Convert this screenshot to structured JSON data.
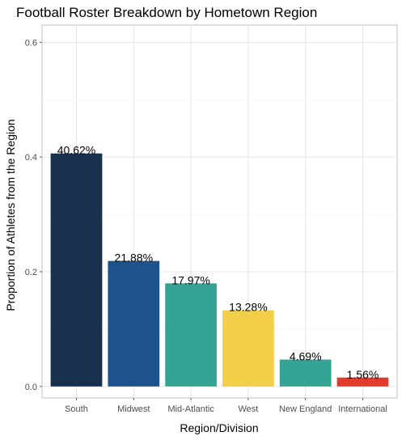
{
  "chart_data": {
    "type": "bar",
    "title": "Football Roster Breakdown by Hometown Region",
    "xlabel": "Region/Division",
    "ylabel": "Proportion of Athletes from the Region",
    "categories": [
      "South",
      "Midwest",
      "Mid-Atlantic",
      "West",
      "New England",
      "International"
    ],
    "values": [
      0.4062,
      0.2188,
      0.1797,
      0.1328,
      0.0469,
      0.0156
    ],
    "data_labels": [
      "40.62%",
      "21.88%",
      "17.97%",
      "13.28%",
      "4.69%",
      "1.56%"
    ],
    "colors": [
      "#16304d",
      "#1d528d",
      "#34a393",
      "#f3cf49",
      "#34a393",
      "#e03b2b"
    ],
    "yticks": [
      0,
      0.2,
      0.4,
      0.6
    ],
    "ytick_labels": [
      "0.0",
      "0.2",
      "0.4",
      "0.6"
    ],
    "ylim": [
      -0.02,
      0.63
    ],
    "grid": true,
    "legend": "none"
  }
}
